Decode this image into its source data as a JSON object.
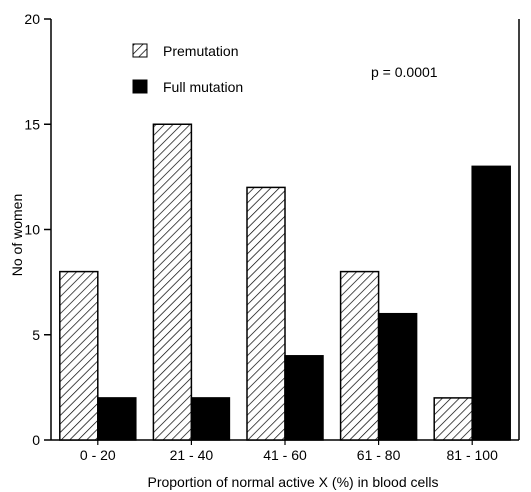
{
  "chart_data": {
    "type": "bar",
    "title": "",
    "xlabel": "Proportion of normal active X (%) in blood cells",
    "ylabel": "No of women",
    "categories": [
      "0 - 20",
      "21 - 40",
      "41 - 60",
      "61 - 80",
      "81 - 100"
    ],
    "series": [
      {
        "name": "Premutation",
        "values": [
          8,
          15,
          12,
          8,
          2
        ],
        "fill": "hatched"
      },
      {
        "name": "Full mutation",
        "values": [
          2,
          2,
          4,
          6,
          13
        ],
        "fill": "solid"
      }
    ],
    "ylim": [
      0,
      20
    ],
    "yticks": [
      0,
      5,
      10,
      15,
      20
    ],
    "grid": false,
    "legend_position": "top-left",
    "annotation": "p = 0.0001",
    "colors": {
      "ink": "#000000",
      "background": "#ffffff"
    }
  }
}
